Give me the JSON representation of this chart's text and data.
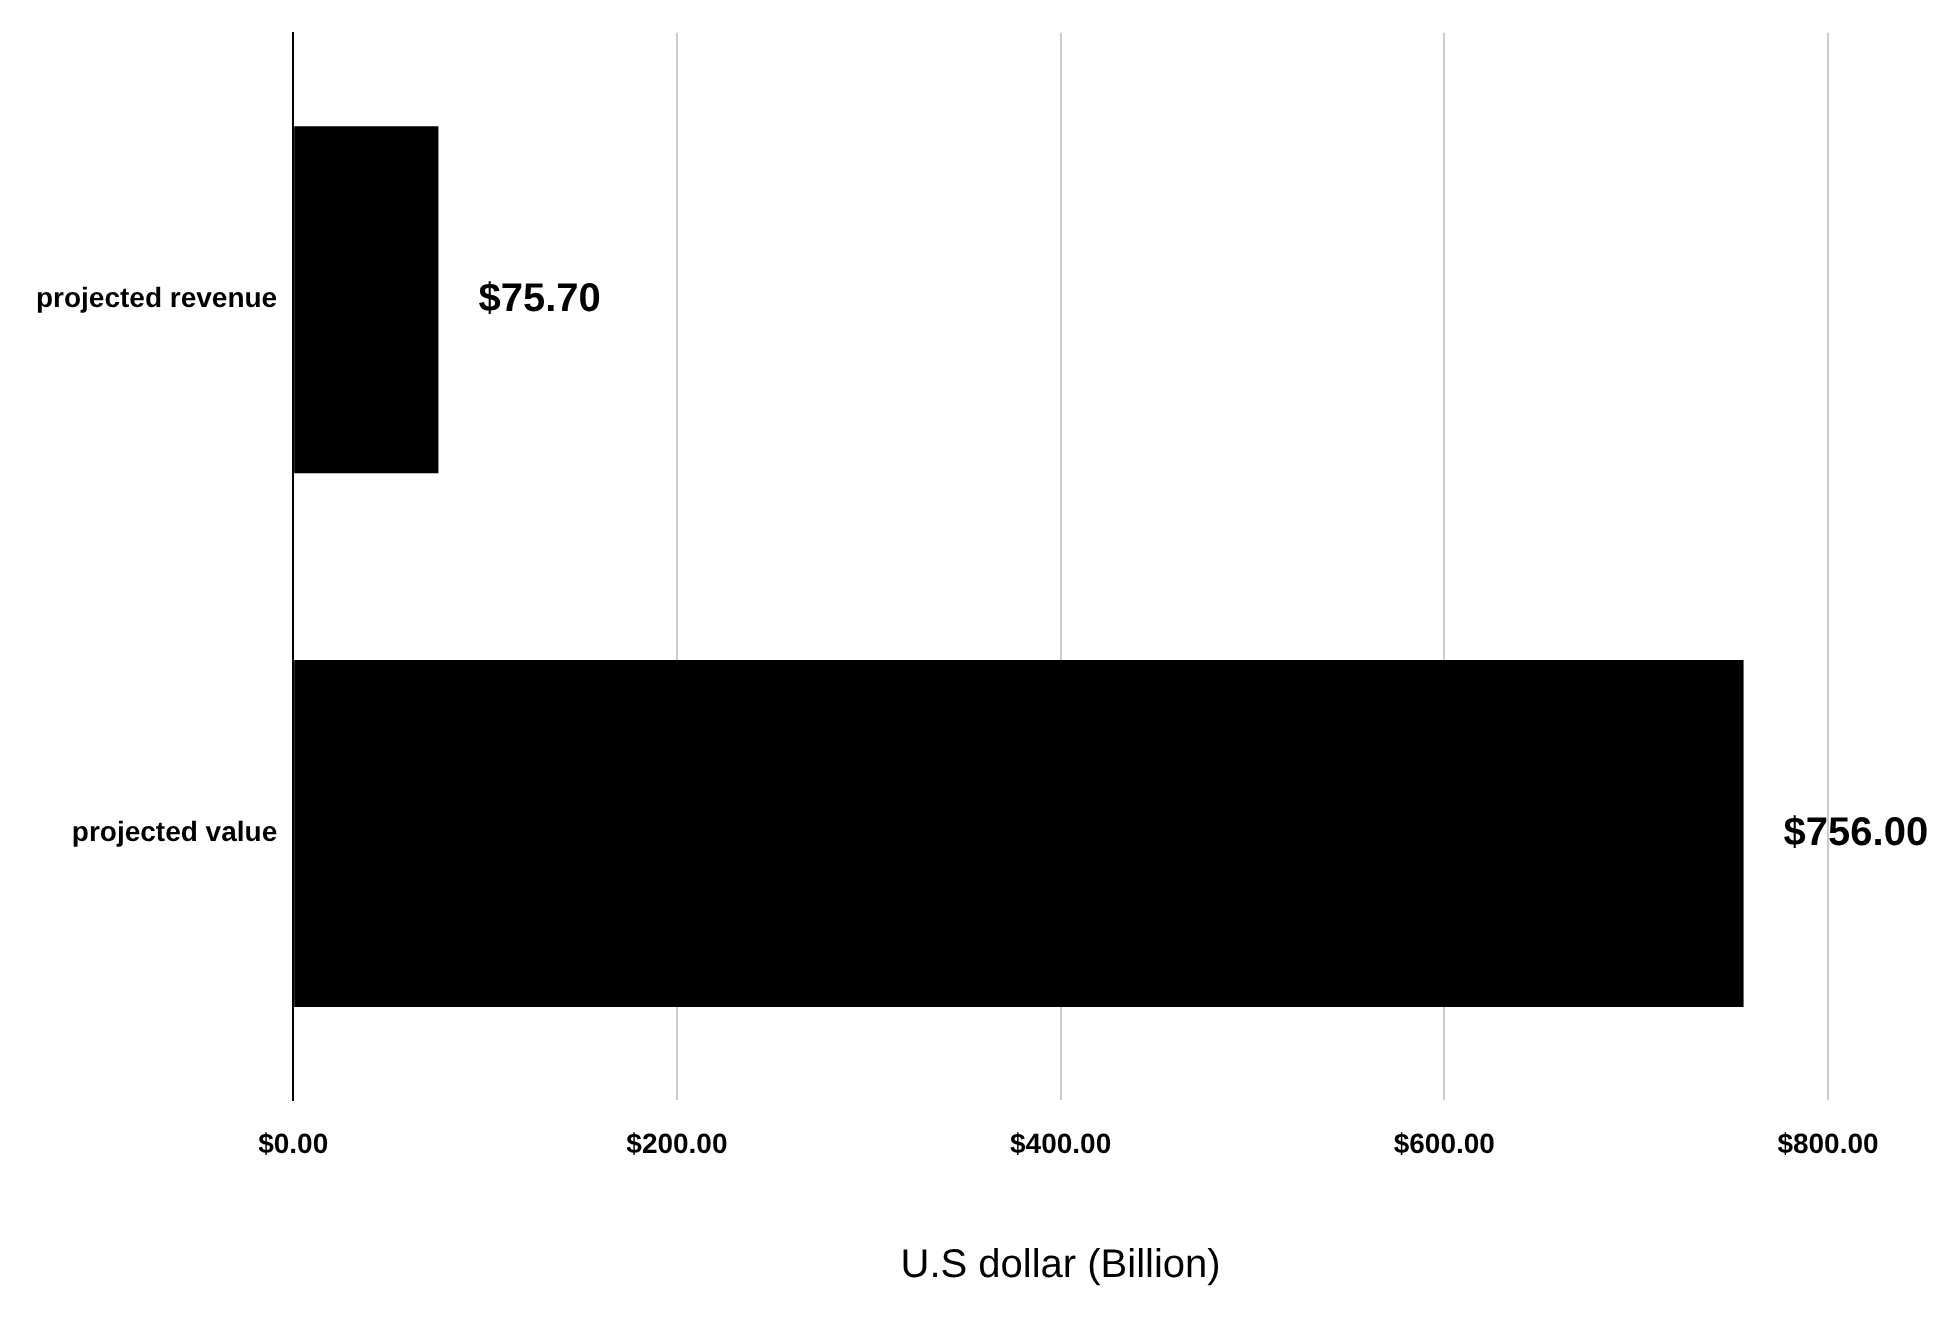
{
  "chart_data": {
    "type": "bar",
    "orientation": "horizontal",
    "xlabel": "U.S dollar (Billion)",
    "categories": [
      "projected revenue",
      "projected value"
    ],
    "values": [
      75.7,
      756
    ],
    "color": "#000000",
    "value_labels": [
      "$75.70",
      "$756.00"
    ],
    "xlim": [
      0,
      800
    ],
    "xticks": [
      {
        "value": 0,
        "label": "$0.00"
      },
      {
        "value": 200,
        "label": "$200.00"
      },
      {
        "value": 400,
        "label": "$400.00"
      },
      {
        "value": 600,
        "label": "$600.00"
      },
      {
        "value": 800,
        "label": "$800.00"
      }
    ],
    "grid": "x",
    "legend": false
  }
}
